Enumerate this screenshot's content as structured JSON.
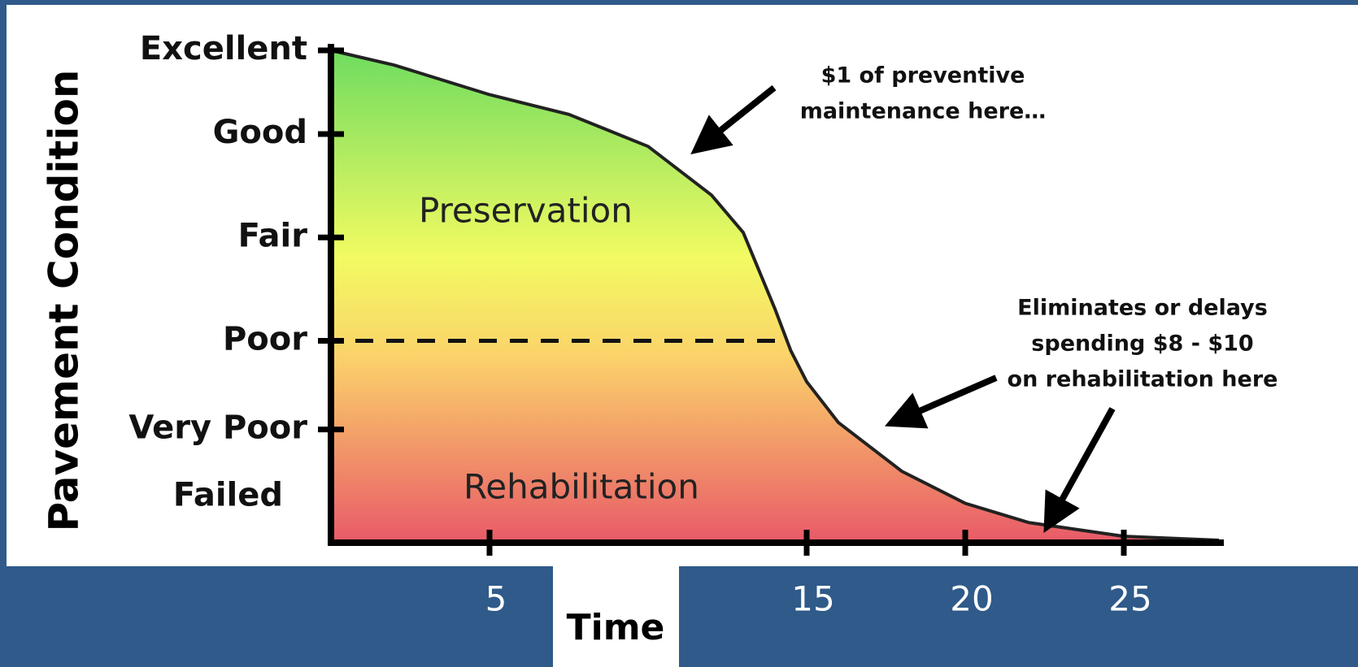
{
  "chart_data": {
    "type": "area",
    "ylabel": "Pavement Condition",
    "xlabel": "Time",
    "x": [
      0,
      2,
      5,
      7.5,
      10,
      12,
      13,
      14,
      14.5,
      15,
      16,
      18,
      20,
      22,
      25,
      28
    ],
    "values": [
      100,
      97,
      91,
      87,
      80.5,
      70.6,
      63,
      47.5,
      39,
      32.7,
      24.4,
      14.5,
      8,
      4.1,
      1.3,
      0.5
    ],
    "xlim": [
      0,
      28
    ],
    "xticks": [
      5,
      15,
      20,
      25
    ],
    "ylim": [
      0,
      100
    ],
    "yticks": [
      {
        "value": 100,
        "label": "Excellent"
      },
      {
        "value": 83,
        "label": "Good"
      },
      {
        "value": 62,
        "label": "Fair"
      },
      {
        "value": 41,
        "label": "Poor"
      },
      {
        "value": 23,
        "label": "Very Poor"
      },
      {
        "value": 5,
        "label": "Failed"
      }
    ],
    "regions": [
      "Preservation",
      "Rehabilitation"
    ],
    "annotations": [
      "$1 of preventive",
      "maintenance here…",
      "Eliminates or delays",
      "spending $8 - $10",
      "on rehabilitation here"
    ]
  }
}
